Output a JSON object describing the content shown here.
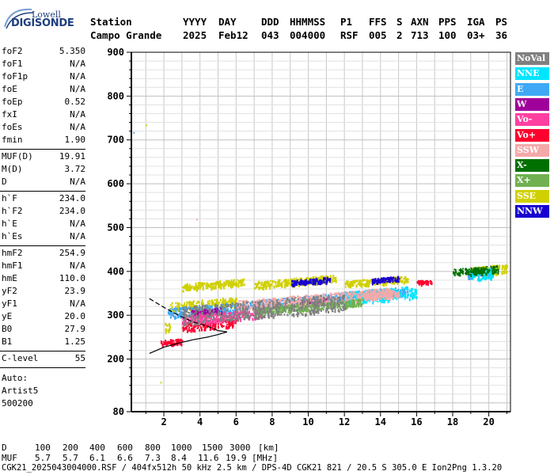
{
  "logo": {
    "line1": "Lowell",
    "line2": "DIGISONDE"
  },
  "header": {
    "labels": [
      "Station",
      "YYYY",
      "DAY",
      "DDD",
      "HHMMSS",
      "P1",
      "FFS",
      "S",
      "AXN",
      "PPS",
      "IGA",
      "PS"
    ],
    "values": [
      "Campo Grande",
      "2025",
      "Feb12",
      "043",
      "004000",
      "RSF",
      "005",
      "2",
      "713",
      "100",
      "03+",
      "36"
    ]
  },
  "parameters": {
    "group1": [
      {
        "name": "foF2",
        "value": "5.350"
      },
      {
        "name": "foF1",
        "value": "N/A"
      },
      {
        "name": "foF1p",
        "value": "N/A"
      },
      {
        "name": "foE",
        "value": "N/A"
      },
      {
        "name": "foEp",
        "value": "0.52"
      },
      {
        "name": "fxI",
        "value": "N/A"
      },
      {
        "name": "foEs",
        "value": "N/A"
      },
      {
        "name": "fmin",
        "value": "1.90"
      }
    ],
    "group2": [
      {
        "name": "MUF(D)",
        "value": "19.91"
      },
      {
        "name": "M(D)",
        "value": "3.72"
      },
      {
        "name": "D",
        "value": "N/A"
      }
    ],
    "group3": [
      {
        "name": "h`F",
        "value": "234.0"
      },
      {
        "name": "h`F2",
        "value": "234.0"
      },
      {
        "name": "h`E",
        "value": "N/A"
      },
      {
        "name": "h`Es",
        "value": "N/A"
      }
    ],
    "group4": [
      {
        "name": "hmF2",
        "value": "254.9"
      },
      {
        "name": "hmF1",
        "value": "N/A"
      },
      {
        "name": "hmE",
        "value": "110.0"
      },
      {
        "name": "yF2",
        "value": "23.9"
      },
      {
        "name": "yF1",
        "value": "N/A"
      },
      {
        "name": "yE",
        "value": "20.0"
      },
      {
        "name": "B0",
        "value": "27.9"
      },
      {
        "name": "B1",
        "value": "1.25"
      }
    ],
    "group5": [
      {
        "name": "C-level",
        "value": "55"
      }
    ],
    "auto": [
      "Auto:",
      "Artist5",
      "500200"
    ]
  },
  "legend": [
    {
      "label": "NoVal",
      "color": "#808080"
    },
    {
      "label": "NNE",
      "color": "#00e5ff"
    },
    {
      "label": "E",
      "color": "#3fa9f5"
    },
    {
      "label": "W",
      "color": "#a0009a"
    },
    {
      "label": "Vo-",
      "color": "#ff40a0"
    },
    {
      "label": "Vo+",
      "color": "#ff0030"
    },
    {
      "label": "SSW",
      "color": "#f4a9a9"
    },
    {
      "label": "X-",
      "color": "#007000"
    },
    {
      "label": "X+",
      "color": "#70b050"
    },
    {
      "label": "SSE",
      "color": "#d0d000"
    },
    {
      "label": "NNW",
      "color": "#1800d0"
    }
  ],
  "chart_data": {
    "type": "scatter",
    "title": "",
    "xlabel": "",
    "ylabel": "",
    "xlim": [
      0.2,
      21.2
    ],
    "ylim": [
      80,
      900
    ],
    "x_ticks": [
      2,
      4,
      6,
      8,
      10,
      12,
      14,
      16,
      18,
      20
    ],
    "y_ticks": [
      80,
      200,
      300,
      400,
      500,
      600,
      700,
      800,
      900
    ],
    "grid": true,
    "series": [
      {
        "name": "SSE",
        "color": "#d0d000",
        "bands": [
          {
            "x0": 2.0,
            "x1": 2.3,
            "y": 272,
            "spread": 14
          },
          {
            "x0": 2.3,
            "x1": 6.0,
            "y": 320,
            "spread": 10
          },
          {
            "x0": 3.0,
            "x1": 6.5,
            "y": 365,
            "spread": 8
          },
          {
            "x0": 7.0,
            "x1": 11.5,
            "y": 370,
            "spread": 8
          },
          {
            "x0": 12.0,
            "x1": 15.5,
            "y": 372,
            "spread": 7
          },
          {
            "x0": 18.8,
            "x1": 21.0,
            "y": 400,
            "spread": 10
          }
        ]
      },
      {
        "name": "E",
        "color": "#3fa9f5",
        "bands": [
          {
            "x0": 2.2,
            "x1": 6.2,
            "y": 305,
            "spread": 12
          },
          {
            "x0": 6.2,
            "x1": 12.0,
            "y": 322,
            "spread": 10
          },
          {
            "x0": 12.0,
            "x1": 15.5,
            "y": 345,
            "spread": 10
          },
          {
            "x0": 18.8,
            "x1": 20.2,
            "y": 395,
            "spread": 10
          }
        ]
      },
      {
        "name": "NNE",
        "color": "#00e5ff",
        "bands": [
          {
            "x0": 12.0,
            "x1": 16.0,
            "y": 340,
            "spread": 14
          },
          {
            "x0": 18.8,
            "x1": 20.2,
            "y": 392,
            "spread": 12
          }
        ]
      },
      {
        "name": "NNW",
        "color": "#1800d0",
        "bands": [
          {
            "x0": 9.0,
            "x1": 11.2,
            "y": 375,
            "spread": 6
          },
          {
            "x0": 13.5,
            "x1": 15.0,
            "y": 380,
            "spread": 5
          }
        ]
      },
      {
        "name": "W",
        "color": "#a0009a",
        "bands": [
          {
            "x0": 9.5,
            "x1": 11.0,
            "y": 328,
            "spread": 6
          },
          {
            "x0": 3.5,
            "x1": 5.2,
            "y": 305,
            "spread": 8
          }
        ]
      },
      {
        "name": "SSW",
        "color": "#f4a9a9",
        "bands": [
          {
            "x0": 6.0,
            "x1": 14.5,
            "y": 322,
            "spread": 12
          },
          {
            "x0": 13.0,
            "x1": 15.0,
            "y": 345,
            "spread": 8
          }
        ]
      },
      {
        "name": "Vo+",
        "color": "#ff0030",
        "bands": [
          {
            "x0": 1.8,
            "x1": 3.0,
            "y": 238,
            "spread": 6
          },
          {
            "x0": 3.0,
            "x1": 6.0,
            "y": 275,
            "spread": 10
          },
          {
            "x0": 16.0,
            "x1": 16.8,
            "y": 375,
            "spread": 5
          }
        ]
      },
      {
        "name": "Vo-",
        "color": "#ff40a0",
        "bands": [
          {
            "x0": 3.0,
            "x1": 7.5,
            "y": 290,
            "spread": 10
          }
        ]
      },
      {
        "name": "X+",
        "color": "#70b050",
        "bands": [
          {
            "x0": 7.0,
            "x1": 13.0,
            "y": 310,
            "spread": 8
          }
        ]
      },
      {
        "name": "X-",
        "color": "#007000",
        "bands": [
          {
            "x0": 18.0,
            "x1": 20.5,
            "y": 398,
            "spread": 8
          }
        ]
      },
      {
        "name": "NoVal",
        "color": "#808080",
        "bands": [
          {
            "x0": 3.0,
            "x1": 12.0,
            "y": 300,
            "spread": 20
          }
        ]
      }
    ],
    "profile_lines": [
      {
        "name": "trace-upper",
        "color": "#000000",
        "points": [
          [
            1.2,
            338
          ],
          [
            2.0,
            318
          ],
          [
            2.8,
            300
          ],
          [
            3.6,
            285
          ],
          [
            4.4,
            275
          ],
          [
            5.0,
            265
          ]
        ]
      },
      {
        "name": "trace-lower",
        "color": "#000000",
        "points": [
          [
            1.2,
            213
          ],
          [
            2.0,
            227
          ],
          [
            2.8,
            236
          ],
          [
            3.6,
            244
          ],
          [
            4.4,
            250
          ],
          [
            5.0,
            256
          ],
          [
            5.5,
            262
          ]
        ]
      },
      {
        "name": "trace-close",
        "color": "#000000",
        "points": [
          [
            5.0,
            265
          ],
          [
            5.5,
            262
          ]
        ]
      }
    ],
    "outliers": [
      {
        "x": 0.3,
        "y": 718,
        "color": "#3fa9f5"
      },
      {
        "x": 1.0,
        "y": 735,
        "color": "#d0d000"
      },
      {
        "x": 3.8,
        "y": 520,
        "color": "#f4a9a9"
      },
      {
        "x": 1.8,
        "y": 148,
        "color": "#d0d000"
      }
    ]
  },
  "muf_table": {
    "d_label": "D",
    "d_values": [
      "100",
      "200",
      "400",
      "600",
      "800",
      "1000",
      "1500",
      "3000"
    ],
    "d_unit": "[km]",
    "muf_label": "MUF",
    "muf_values": [
      "5.7",
      "5.7",
      "6.1",
      "6.6",
      "7.3",
      "8.4",
      "11.6",
      "19.9"
    ],
    "muf_unit": "[MHz]"
  },
  "footer": "CGK21_2025043004000.RSF / 404fx512h 50 kHz 2.5 km / DPS-4D CGK21 821 / 20.5 S 305.0 E Ion2Png 1.3.20"
}
